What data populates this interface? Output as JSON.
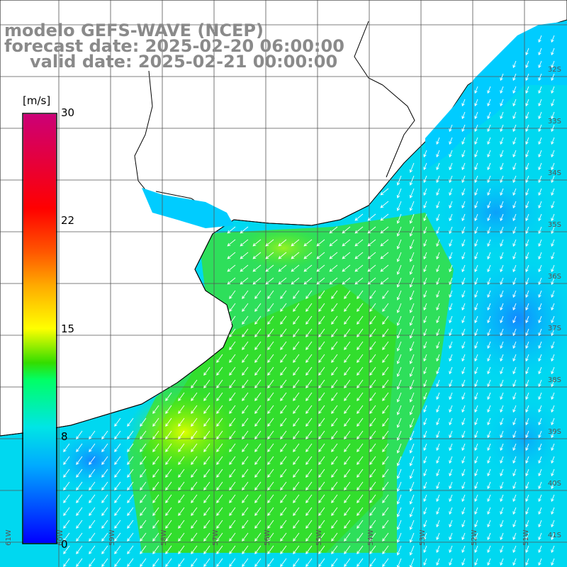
{
  "title": {
    "line1": "modelo GEFS-WAVE (NCEP)",
    "line2": "forecast date: 2025-02-20 06:00:00",
    "line3": "valid date: 2025-02-21 00:00:00"
  },
  "colorbar": {
    "unit": "[m/s]",
    "ticks": [
      "30",
      "22",
      "15",
      "8",
      "0"
    ],
    "tick_values": [
      30,
      22,
      15,
      8,
      0
    ],
    "min": 0,
    "max": 30,
    "colors": [
      "#0000ff",
      "#00aaff",
      "#00e5e5",
      "#00ff66",
      "#33dd00",
      "#aaee00",
      "#ffff00",
      "#ffaa00",
      "#ff5500",
      "#ff0000",
      "#ee0033",
      "#cc0077"
    ]
  },
  "map": {
    "lat_labels": [
      "32S",
      "33S",
      "34S",
      "35S",
      "36S",
      "37S",
      "38S",
      "39S",
      "40S",
      "41S"
    ],
    "lon_labels": [
      "61W",
      "60W",
      "59W",
      "58W",
      "57W",
      "56W",
      "55W",
      "54W",
      "53W",
      "52W",
      "51W"
    ],
    "wind_direction": "northeast",
    "ocean_color": "#00e5ee",
    "land_color": "#ffffff"
  }
}
